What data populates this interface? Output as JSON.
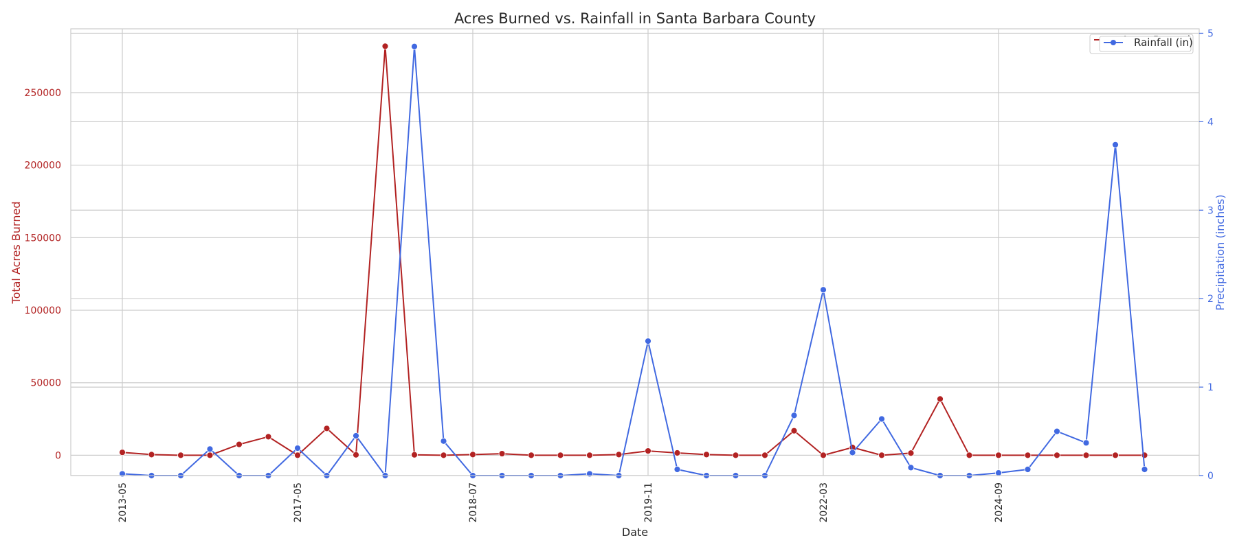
{
  "chart_data": {
    "type": "line",
    "title": "Acres Burned vs. Rainfall in Santa Barbara County",
    "xlabel": "Date",
    "x_tick_labels": [
      "2013-05",
      "2017-05",
      "2018-07",
      "2019-11",
      "2022-03",
      "2024-09"
    ],
    "x_tick_indices": [
      0,
      6,
      12,
      18,
      24,
      30
    ],
    "y_left": {
      "label": "Total Acres Burned",
      "color": "#b22222",
      "range": [
        -14000,
        294000
      ],
      "ticks": [
        0,
        50000,
        100000,
        150000,
        200000,
        250000
      ],
      "tick_labels": [
        "0",
        "50000",
        "100000",
        "150000",
        "200000",
        "250000"
      ]
    },
    "y_right": {
      "label": "Precipitation (inches)",
      "color": "#4169e1",
      "range": [
        0,
        5.05
      ],
      "ticks": [
        0,
        1,
        2,
        3,
        4,
        5
      ],
      "tick_labels": [
        "0",
        "1",
        "2",
        "3",
        "4",
        "5"
      ]
    },
    "grid": true,
    "legend_position": "top-right",
    "series": [
      {
        "name": "Acres Burned",
        "axis": "left",
        "color": "#b22222",
        "values": [
          2000,
          500,
          0,
          0,
          7500,
          12800,
          0,
          18500,
          300,
          282000,
          300,
          0,
          500,
          1100,
          0,
          0,
          0,
          500,
          3000,
          1600,
          500,
          0,
          0,
          16900,
          0,
          5400,
          0,
          1500,
          38800,
          0,
          0,
          0,
          0,
          0,
          0,
          0
        ]
      },
      {
        "name": "Rainfall (in)",
        "axis": "right",
        "color": "#4169e1",
        "values": [
          0.02,
          0.0,
          0.0,
          0.3,
          0.0,
          0.0,
          0.31,
          0.0,
          0.45,
          0.0,
          4.85,
          0.39,
          0.0,
          0.0,
          0.0,
          0.0,
          0.02,
          0.0,
          1.52,
          0.07,
          0.0,
          0.0,
          0.0,
          0.68,
          2.1,
          0.26,
          0.64,
          0.09,
          0.0,
          0.0,
          0.03,
          0.07,
          0.5,
          0.37,
          3.74,
          0.07
        ]
      }
    ]
  }
}
